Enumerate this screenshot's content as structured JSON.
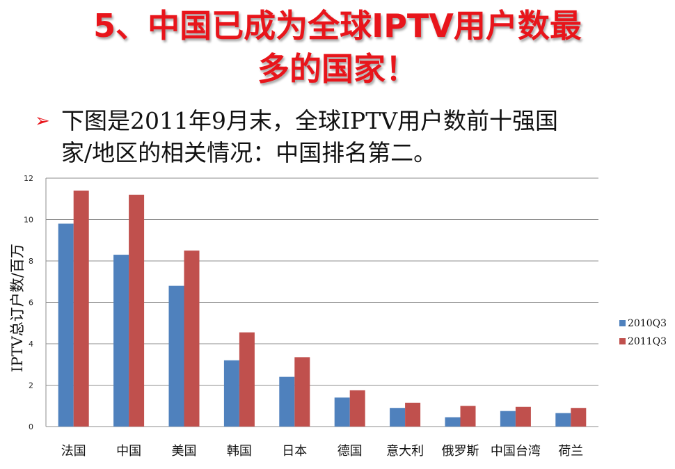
{
  "slide": {
    "title_line1": "5、中国已成为全球IPTV用户数最",
    "title_line2": "多的国家！",
    "bullet_icon": "arrow-bullet-icon",
    "bullet_line1": "下图是2011年9月末，全球IPTV用户数前十强国",
    "bullet_line2": "家/地区的相关情况：中国排名第二。"
  },
  "colors": {
    "title": "#e8151b",
    "series_2010": "#4f81bd",
    "series_2011": "#c0504d"
  },
  "chart_data": {
    "type": "bar",
    "title": "",
    "xlabel": "",
    "ylabel": "IPTV总订户数/百万",
    "ylim": [
      0,
      12
    ],
    "yticks": [
      "0",
      "2",
      "4",
      "6",
      "8",
      "10",
      "12"
    ],
    "grid": true,
    "legend_position": "right",
    "categories": [
      "法国",
      "中国",
      "美国",
      "韩国",
      "日本",
      "德国",
      "意大利",
      "俄罗斯",
      "中国台湾",
      "荷兰"
    ],
    "series": [
      {
        "name": "2010Q3",
        "values": [
          9.8,
          8.3,
          6.8,
          3.2,
          2.4,
          1.4,
          0.9,
          0.45,
          0.75,
          0.65
        ]
      },
      {
        "name": "2011Q3",
        "values": [
          11.4,
          11.2,
          8.5,
          4.55,
          3.35,
          1.75,
          1.15,
          1.0,
          0.95,
          0.9
        ]
      }
    ]
  }
}
